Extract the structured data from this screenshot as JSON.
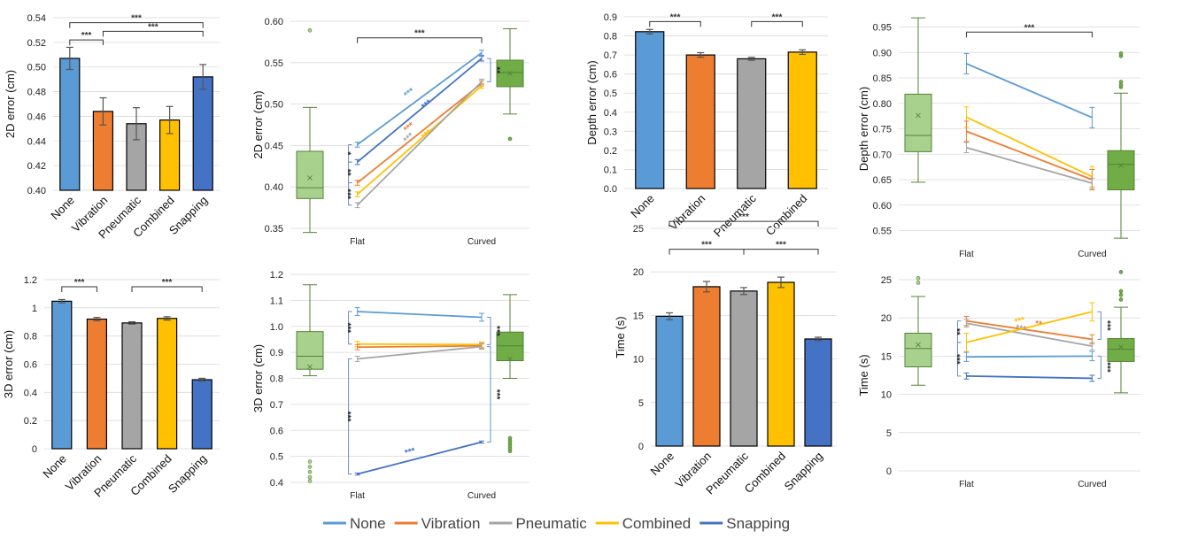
{
  "colors": {
    "None": "#5b9bd5",
    "Vibration": "#ed7d31",
    "Pneumatic": "#a5a5a5",
    "Combined": "#ffc000",
    "Snapping": "#4472c4",
    "box_flat": "#a9d18e",
    "box_curved": "#70ad47",
    "box_edge": "#548235"
  },
  "legend": {
    "items": [
      {
        "label": "None",
        "color": "#5b9bd5"
      },
      {
        "label": "Vibration",
        "color": "#ed7d31"
      },
      {
        "label": "Pneumatic",
        "color": "#a5a5a5"
      },
      {
        "label": "Combined",
        "color": "#ffc000"
      },
      {
        "label": "Snapping",
        "color": "#4472c4"
      }
    ]
  },
  "chart_data": [
    {
      "id": "c1",
      "type": "bar",
      "ylabel": "2D error (cm)",
      "ylim": [
        0.4,
        0.54
      ],
      "yticks": [
        0.4,
        0.42,
        0.44,
        0.46,
        0.48,
        0.5,
        0.52,
        0.54
      ],
      "ydec": 2,
      "categories": [
        "None",
        "Vibration",
        "Pneumatic",
        "Combined",
        "Snapping"
      ],
      "values": [
        0.507,
        0.464,
        0.454,
        0.457,
        0.492
      ],
      "errors": [
        0.009,
        0.011,
        0.013,
        0.011,
        0.01
      ],
      "brackets": [
        {
          "from": 0,
          "to": 4,
          "y": 0.536,
          "label": "***"
        },
        {
          "from": 0,
          "to": 1,
          "y": 0.522,
          "label": "***"
        },
        {
          "from": 1,
          "to": 4,
          "y": 0.529,
          "label": "***"
        }
      ]
    },
    {
      "id": "c2",
      "type": "line",
      "ylabel": "2D error (cm)",
      "ylim": [
        0.35,
        0.6
      ],
      "yticks": [
        0.35,
        0.4,
        0.45,
        0.5,
        0.55,
        0.6
      ],
      "ydec": 2,
      "x": [
        "Flat",
        "Curved"
      ],
      "series": [
        {
          "name": "None",
          "values": [
            0.451,
            0.562
          ],
          "err": 0.003
        },
        {
          "name": "Snapping",
          "values": [
            0.43,
            0.555
          ],
          "err": 0.003
        },
        {
          "name": "Vibration",
          "values": [
            0.405,
            0.525
          ],
          "err": 0.003
        },
        {
          "name": "Combined",
          "values": [
            0.391,
            0.522
          ],
          "err": 0.003
        },
        {
          "name": "Pneumatic",
          "values": [
            0.378,
            0.527
          ],
          "err": 0.003
        }
      ],
      "boxes": [
        {
          "at": "Flat",
          "min": 0.345,
          "q1": 0.386,
          "median": 0.399,
          "q3": 0.443,
          "max": 0.496,
          "mean": 0.412,
          "outliers": [
            0.589
          ]
        },
        {
          "at": "Curved",
          "min": 0.488,
          "q1": 0.521,
          "median": 0.538,
          "q3": 0.553,
          "max": 0.591,
          "mean": 0.538,
          "outliers": [
            0.458
          ]
        }
      ],
      "line_labels": [
        {
          "series": "None",
          "label": "***"
        },
        {
          "series": "Snapping",
          "label": "***"
        },
        {
          "series": "Vibration",
          "label": "***"
        },
        {
          "series": "Combined",
          "label": "***"
        },
        {
          "series": "Pneumatic",
          "label": "***"
        }
      ],
      "brackets": [
        {
          "from": "Flat",
          "to": "Curved",
          "y": 0.58,
          "label": "***"
        }
      ],
      "side_brackets": [
        {
          "at": "Flat",
          "y1": 0.43,
          "y2": 0.451,
          "label": "*",
          "color": "#222"
        },
        {
          "at": "Flat",
          "y1": 0.405,
          "y2": 0.43,
          "label": "**",
          "color": "#222"
        },
        {
          "at": "Flat",
          "y1": 0.378,
          "y2": 0.405,
          "label": "***",
          "color": "#222"
        },
        {
          "at": "Curved",
          "y1": 0.527,
          "y2": 0.555,
          "label": "**",
          "color": "#222"
        }
      ]
    },
    {
      "id": "c3",
      "type": "bar",
      "ylabel": "Depth error (cm)",
      "ylim": [
        0,
        0.9
      ],
      "yticks": [
        0,
        0.1,
        0.2,
        0.3,
        0.4,
        0.5,
        0.6,
        0.7,
        0.8,
        0.9
      ],
      "ydec": 1,
      "categories": [
        "None",
        "Vibration",
        "Pneumatic",
        "Combined"
      ],
      "values": [
        0.822,
        0.7,
        0.68,
        0.715
      ],
      "errors": [
        0.012,
        0.012,
        0.008,
        0.012
      ],
      "brackets": [
        {
          "from": 0,
          "to": 1,
          "y": 0.875,
          "label": "***"
        },
        {
          "from": 2,
          "to": 3,
          "y": 0.875,
          "label": "***"
        }
      ]
    },
    {
      "id": "c4",
      "type": "line",
      "ylabel": "Depth error (cm)",
      "ylim": [
        0.53,
        0.97
      ],
      "yticks": [
        0.55,
        0.6,
        0.65,
        0.7,
        0.75,
        0.8,
        0.85,
        0.9,
        0.95
      ],
      "ydec": 2,
      "x": [
        "Flat",
        "Curved"
      ],
      "series": [
        {
          "name": "None",
          "values": [
            0.878,
            0.772
          ],
          "err": 0.02
        },
        {
          "name": "Combined",
          "values": [
            0.773,
            0.656
          ],
          "err": 0.02
        },
        {
          "name": "Vibration",
          "values": [
            0.745,
            0.65
          ],
          "err": 0.02
        },
        {
          "name": "Pneumatic",
          "values": [
            0.713,
            0.643
          ],
          "err": 0.01
        }
      ],
      "boxes": [
        {
          "at": "Flat",
          "min": 0.645,
          "q1": 0.705,
          "median": 0.737,
          "q3": 0.818,
          "max": 0.968,
          "mean": 0.778,
          "outliers": []
        },
        {
          "at": "Curved",
          "min": 0.535,
          "q1": 0.63,
          "median": 0.68,
          "q3": 0.707,
          "max": 0.82,
          "mean": 0.68,
          "outliers": [
            0.832,
            0.836,
            0.842,
            0.893,
            0.898
          ]
        }
      ],
      "line_labels": [],
      "brackets": [
        {
          "from": "Flat",
          "to": "Curved",
          "y": 0.94,
          "label": "***"
        }
      ],
      "side_brackets": []
    },
    {
      "id": "c5",
      "type": "bar",
      "ylabel": "3D error (cm)",
      "ylim": [
        0,
        1.2
      ],
      "yticks": [
        0,
        0.2,
        0.4,
        0.6,
        0.8,
        1,
        1.2
      ],
      "ydec": 0,
      "categories": [
        "None",
        "Vibration",
        "Pneumatic",
        "Combined",
        "Snapping"
      ],
      "values": [
        1.047,
        0.92,
        0.893,
        0.925,
        0.49
      ],
      "errors": [
        0.012,
        0.012,
        0.008,
        0.012,
        0.01
      ],
      "brackets": [
        {
          "from": 0,
          "to": 1,
          "y": 1.15,
          "label": "***"
        },
        {
          "from": 2,
          "to": 4,
          "y": 1.15,
          "label": "***"
        }
      ]
    },
    {
      "id": "c6",
      "type": "line",
      "ylabel": "3D error (cm)",
      "ylim": [
        0.4,
        1.2
      ],
      "yticks": [
        0.4,
        0.5,
        0.6,
        0.7,
        0.8,
        0.9,
        1,
        1.1,
        1.2
      ],
      "ydec": 1,
      "x": [
        "Flat",
        "Curved"
      ],
      "series": [
        {
          "name": "None",
          "values": [
            1.057,
            1.035
          ],
          "err": 0.015
        },
        {
          "name": "Combined",
          "values": [
            0.932,
            0.93
          ],
          "err": 0.01
        },
        {
          "name": "Vibration",
          "values": [
            0.92,
            0.925
          ],
          "err": 0.01
        },
        {
          "name": "Pneumatic",
          "values": [
            0.875,
            0.922
          ],
          "err": 0.01
        },
        {
          "name": "Snapping",
          "values": [
            0.432,
            0.555
          ],
          "err": 0.004
        }
      ],
      "boxes": [
        {
          "at": "Flat",
          "min": 0.81,
          "q1": 0.835,
          "median": 0.885,
          "q3": 0.98,
          "max": 1.16,
          "mean": 0.847,
          "outliers": [
            0.405,
            0.42,
            0.44,
            0.46,
            0.48
          ]
        },
        {
          "at": "Curved",
          "min": 0.8,
          "q1": 0.868,
          "median": 0.925,
          "q3": 0.978,
          "max": 1.122,
          "mean": 0.878,
          "outliers": [
            0.52,
            0.53,
            0.54,
            0.55,
            0.56,
            0.57
          ]
        }
      ],
      "line_labels": [
        {
          "series": "Snapping",
          "label": "***"
        }
      ],
      "brackets": [],
      "side_brackets": [
        {
          "at": "Flat",
          "y1": 0.932,
          "y2": 1.057,
          "label": "***",
          "color": "#222"
        },
        {
          "at": "Flat",
          "y1": 0.432,
          "y2": 0.875,
          "label": "***",
          "color": "#222"
        },
        {
          "at": "Curved",
          "y1": 0.93,
          "y2": 1.035,
          "label": "***",
          "color": "#222"
        },
        {
          "at": "Curved",
          "y1": 0.555,
          "y2": 0.922,
          "label": "***",
          "color": "#222"
        }
      ]
    },
    {
      "id": "c7",
      "type": "bar",
      "ylabel": "Time (s)",
      "ylim": [
        0,
        25
      ],
      "yticks": [
        0,
        5,
        10,
        15,
        20,
        25
      ],
      "ydec": 0,
      "categories": [
        "None",
        "Vibration",
        "Pneumatic",
        "Combined",
        "Snapping"
      ],
      "values": [
        14.9,
        18.3,
        17.8,
        18.8,
        12.3
      ],
      "errors": [
        0.4,
        0.6,
        0.4,
        0.6,
        0.2
      ],
      "brackets": [
        {
          "from": 0,
          "to": 4,
          "y": 25.8,
          "label": "***"
        },
        {
          "from": 0,
          "to": 2,
          "y": 22.6,
          "label": "***"
        },
        {
          "from": 2,
          "to": 4,
          "y": 22.6,
          "label": "***"
        }
      ]
    },
    {
      "id": "c8",
      "type": "line",
      "ylabel": "Time (s)",
      "ylim": [
        0,
        25
      ],
      "yticks": [
        0,
        5,
        10,
        15,
        20,
        25
      ],
      "ydec": 0,
      "x": [
        "Flat",
        "Curved"
      ],
      "series": [
        {
          "name": "Vibration",
          "values": [
            19.6,
            17.2
          ],
          "err": 0.6
        },
        {
          "name": "Pneumatic",
          "values": [
            19.3,
            16.3
          ],
          "err": 0.5
        },
        {
          "name": "Combined",
          "values": [
            16.8,
            20.8
          ],
          "err": 1.2
        },
        {
          "name": "None",
          "values": [
            14.9,
            15.0
          ],
          "err": 0.6
        },
        {
          "name": "Snapping",
          "values": [
            12.4,
            12.1
          ],
          "err": 0.4
        }
      ],
      "boxes": [
        {
          "at": "Flat",
          "min": 11.2,
          "q1": 13.6,
          "median": 16.0,
          "q3": 18.0,
          "max": 22.8,
          "mean": 16.6,
          "outliers": [
            24.6,
            25.2
          ]
        },
        {
          "at": "Curved",
          "min": 10.2,
          "q1": 14.3,
          "median": 15.9,
          "q3": 17.3,
          "max": 21.4,
          "mean": 16.3,
          "outliers": [
            22.4,
            23.0,
            23.5,
            26.0
          ]
        }
      ],
      "line_labels": [
        {
          "series": "Combined",
          "label": "***"
        },
        {
          "series": "Vibration",
          "label": "**"
        },
        {
          "series": "Pneumatic",
          "label": "***"
        }
      ],
      "brackets": [],
      "side_brackets": [
        {
          "at": "Flat",
          "y1": 16.8,
          "y2": 19.6,
          "label": "**",
          "color": "#222"
        },
        {
          "at": "Flat",
          "y1": 12.4,
          "y2": 16.8,
          "label": "***",
          "color": "#222"
        },
        {
          "at": "Curved",
          "y1": 17.2,
          "y2": 20.8,
          "label": "***",
          "color": "#222"
        },
        {
          "at": "Curved",
          "y1": 12.1,
          "y2": 15.0,
          "label": "***",
          "color": "#222"
        }
      ]
    }
  ]
}
